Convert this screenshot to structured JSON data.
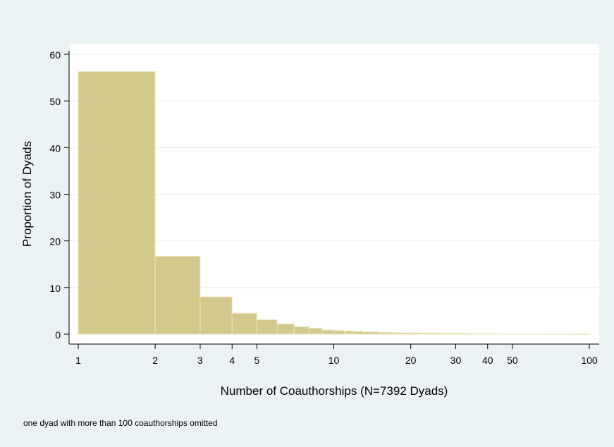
{
  "chart_data": {
    "type": "bar",
    "xlabel": "Number of Coauthorships (N=7392 Dyads)",
    "ylabel": "Proportion of Dyads",
    "x_scale": "log",
    "xlim": [
      1,
      100
    ],
    "ylim": [
      0,
      62
    ],
    "grid": true,
    "legend": "none",
    "xticks": [
      {
        "value": 1,
        "label": "1"
      },
      {
        "value": 2,
        "label": "2"
      },
      {
        "value": 3,
        "label": "3"
      },
      {
        "value": 4,
        "label": "4"
      },
      {
        "value": 5,
        "label": "5"
      },
      {
        "value": 10,
        "label": "10"
      },
      {
        "value": 20,
        "label": "20"
      },
      {
        "value": 30,
        "label": "30"
      },
      {
        "value": 40,
        "label": "40"
      },
      {
        "value": 50,
        "label": "50"
      },
      {
        "value": 100,
        "label": "100"
      }
    ],
    "yticks": [
      {
        "value": 0,
        "label": "0"
      },
      {
        "value": 10,
        "label": "10"
      },
      {
        "value": 20,
        "label": "20"
      },
      {
        "value": 30,
        "label": "30"
      },
      {
        "value": 40,
        "label": "40"
      },
      {
        "value": 50,
        "label": "50"
      },
      {
        "value": 60,
        "label": "60"
      }
    ],
    "bars": [
      {
        "x0": 1,
        "x1": 2,
        "value": 56.3
      },
      {
        "x0": 2,
        "x1": 3,
        "value": 16.7
      },
      {
        "x0": 3,
        "x1": 4,
        "value": 8.0
      },
      {
        "x0": 4,
        "x1": 5,
        "value": 4.5
      },
      {
        "x0": 5,
        "x1": 6,
        "value": 3.1
      },
      {
        "x0": 6,
        "x1": 7,
        "value": 2.2
      },
      {
        "x0": 7,
        "x1": 8,
        "value": 1.6
      },
      {
        "x0": 8,
        "x1": 9,
        "value": 1.3
      },
      {
        "x0": 9,
        "x1": 10,
        "value": 0.9
      },
      {
        "x0": 10,
        "x1": 11,
        "value": 0.8
      },
      {
        "x0": 11,
        "x1": 12,
        "value": 0.7
      },
      {
        "x0": 12,
        "x1": 13,
        "value": 0.6
      },
      {
        "x0": 13,
        "x1": 14,
        "value": 0.5
      },
      {
        "x0": 14,
        "x1": 15,
        "value": 0.5
      },
      {
        "x0": 15,
        "x1": 16,
        "value": 0.4
      },
      {
        "x0": 16,
        "x1": 17,
        "value": 0.4
      },
      {
        "x0": 17,
        "x1": 18,
        "value": 0.35
      },
      {
        "x0": 18,
        "x1": 19,
        "value": 0.3
      },
      {
        "x0": 19,
        "x1": 20,
        "value": 0.3
      },
      {
        "x0": 20,
        "x1": 22,
        "value": 0.3
      },
      {
        "x0": 22,
        "x1": 24,
        "value": 0.25
      },
      {
        "x0": 24,
        "x1": 26,
        "value": 0.25
      },
      {
        "x0": 26,
        "x1": 28,
        "value": 0.2
      },
      {
        "x0": 28,
        "x1": 30,
        "value": 0.2
      },
      {
        "x0": 30,
        "x1": 33,
        "value": 0.2
      },
      {
        "x0": 33,
        "x1": 36,
        "value": 0.15
      },
      {
        "x0": 36,
        "x1": 40,
        "value": 0.15
      },
      {
        "x0": 40,
        "x1": 45,
        "value": 0.12
      },
      {
        "x0": 45,
        "x1": 50,
        "value": 0.1
      },
      {
        "x0": 50,
        "x1": 56,
        "value": 0.1
      },
      {
        "x0": 56,
        "x1": 63,
        "value": 0.08
      },
      {
        "x0": 63,
        "x1": 70,
        "value": 0.06
      },
      {
        "x0": 70,
        "x1": 80,
        "value": 0.05
      },
      {
        "x0": 80,
        "x1": 90,
        "value": 0.04
      },
      {
        "x0": 90,
        "x1": 100,
        "value": 0.03
      }
    ],
    "bar_color": "#d4c98c",
    "bar_edge_color": "#eee8c4",
    "background_color": "#eaf2f3",
    "plot_background_color": "#ffffff",
    "grid_color": "#e7eef0"
  },
  "note": "one dyad with more than 100 coauthorships omitted"
}
